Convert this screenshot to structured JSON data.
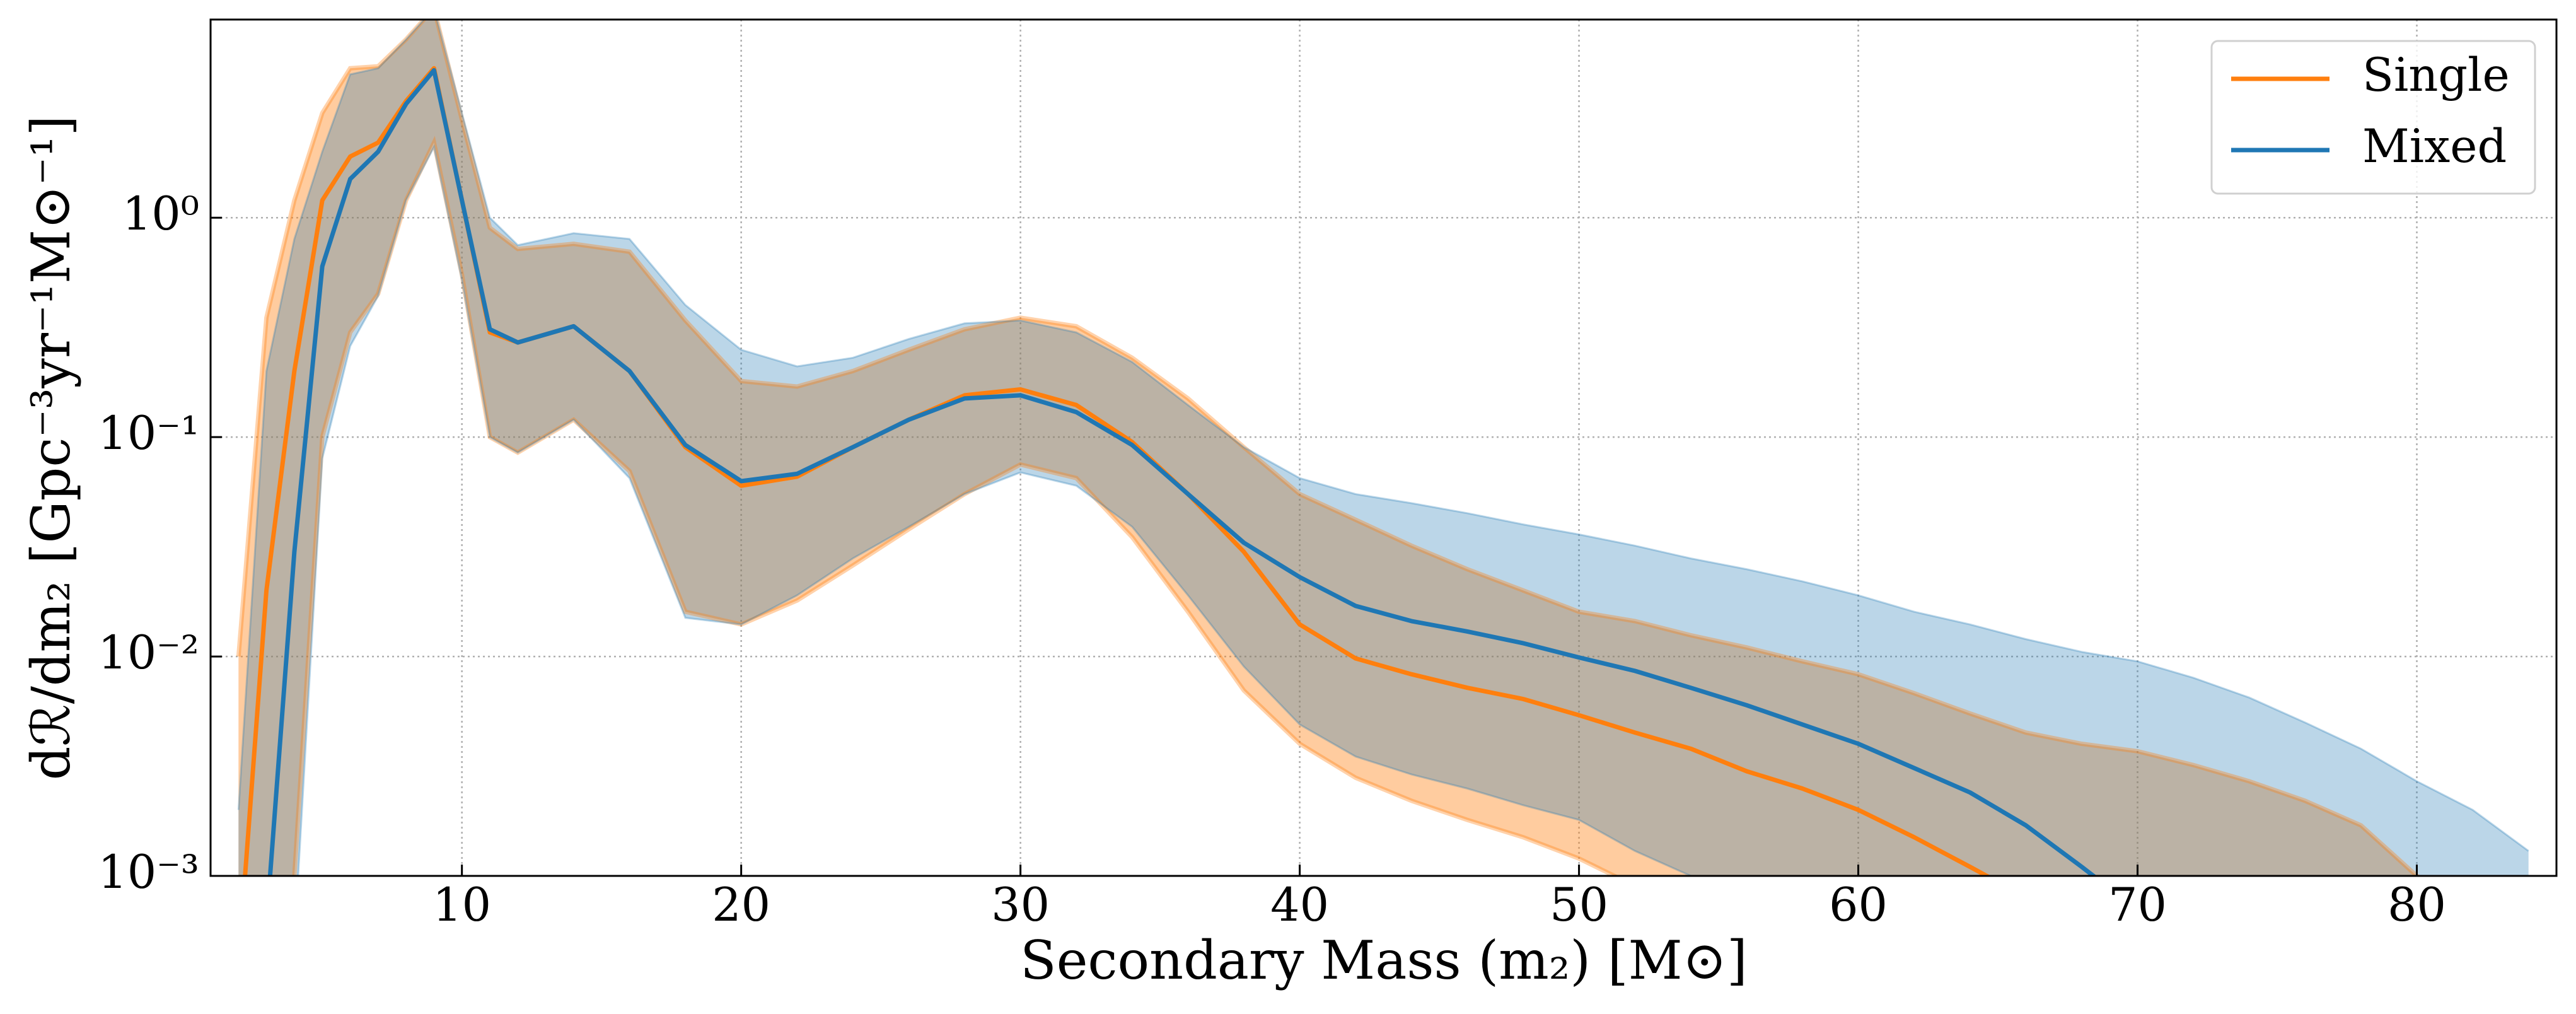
{
  "chart_data": {
    "type": "line",
    "xlabel": "Secondary Mass (m₂) [M⊙]",
    "ylabel": "dℛ/dm₂ [Gpc⁻³yr⁻¹M⊙⁻¹]",
    "x": [
      2,
      3,
      4,
      5,
      6,
      7,
      8,
      9,
      10,
      11,
      12,
      14,
      16,
      18,
      20,
      22,
      24,
      26,
      28,
      30,
      32,
      34,
      36,
      38,
      40,
      42,
      44,
      46,
      48,
      50,
      52,
      54,
      56,
      58,
      60,
      62,
      64,
      66,
      68,
      70,
      72,
      74,
      76,
      78,
      80,
      82,
      84
    ],
    "series": [
      {
        "name": "Single",
        "color": "#ff7f0e",
        "values": [
          0.0004,
          0.02,
          0.2,
          1.2,
          1.9,
          2.2,
          3.4,
          4.8,
          1.2,
          0.3,
          0.27,
          0.32,
          0.2,
          0.09,
          0.06,
          0.066,
          0.09,
          0.12,
          0.155,
          0.165,
          0.14,
          0.095,
          0.055,
          0.03,
          0.014,
          0.0098,
          0.0083,
          0.0072,
          0.0064,
          0.0054,
          0.0045,
          0.0038,
          0.003,
          0.0025,
          0.002,
          0.0015,
          0.0011,
          0.0008,
          null,
          null,
          null,
          null,
          null,
          null,
          null,
          null,
          null
        ],
        "lower": [
          0.0003,
          0.0004,
          0.001,
          0.1,
          0.3,
          0.45,
          1.2,
          2.2,
          0.55,
          0.1,
          0.085,
          0.12,
          0.07,
          0.016,
          0.014,
          0.018,
          0.026,
          0.038,
          0.055,
          0.075,
          0.065,
          0.035,
          0.016,
          0.007,
          0.004,
          0.0028,
          0.0022,
          0.0018,
          0.0015,
          0.0012,
          0.0009,
          0.0007,
          0.0005,
          0.0005,
          0.0005,
          0.0005,
          0.0005,
          0.0005,
          0.0005,
          0.0005,
          0.0005,
          0.0005,
          0.0005,
          0.0005,
          0.0005,
          0.0005,
          0.0005
        ],
        "upper": [
          0.01,
          0.35,
          1.2,
          3.0,
          4.8,
          4.9,
          6.5,
          9,
          2.8,
          0.9,
          0.72,
          0.76,
          0.7,
          0.34,
          0.18,
          0.17,
          0.2,
          0.25,
          0.31,
          0.35,
          0.32,
          0.23,
          0.15,
          0.09,
          0.055,
          0.042,
          0.032,
          0.025,
          0.02,
          0.016,
          0.0145,
          0.0125,
          0.011,
          0.0095,
          0.0083,
          0.0068,
          0.0055,
          0.0045,
          0.004,
          0.0037,
          0.0032,
          0.0027,
          0.0022,
          0.0017,
          0.001,
          0.0007,
          0.0005
        ]
      },
      {
        "name": "Mixed",
        "color": "#1f77b4",
        "values": [
          null,
          0.0006,
          0.03,
          0.6,
          1.5,
          2.0,
          3.3,
          4.7,
          1.2,
          0.31,
          0.27,
          0.32,
          0.2,
          0.092,
          0.063,
          0.068,
          0.09,
          0.12,
          0.15,
          0.155,
          0.13,
          0.092,
          0.055,
          0.033,
          0.023,
          0.017,
          0.0145,
          0.013,
          0.0115,
          0.0099,
          0.0086,
          0.0072,
          0.006,
          0.0049,
          0.004,
          0.0031,
          0.0024,
          0.0017,
          0.0011,
          0.0007,
          null,
          null,
          null,
          null,
          null,
          null,
          null
        ],
        "lower": [
          0.0003,
          0.0003,
          0.0005,
          0.08,
          0.26,
          0.44,
          1.2,
          2.1,
          0.52,
          0.1,
          0.085,
          0.12,
          0.065,
          0.015,
          0.014,
          0.019,
          0.028,
          0.039,
          0.055,
          0.069,
          0.06,
          0.039,
          0.019,
          0.009,
          0.0049,
          0.0035,
          0.0029,
          0.0025,
          0.0021,
          0.0018,
          0.0013,
          0.001,
          0.0007,
          0.0005,
          0.0005,
          0.0005,
          0.0005,
          0.0005,
          0.0005,
          0.0005,
          0.0005,
          0.0005,
          0.0005,
          0.0005,
          0.0005,
          0.0005,
          0.0005
        ],
        "upper": [
          0.002,
          0.2,
          0.8,
          2.0,
          4.5,
          4.8,
          6.5,
          9,
          3.0,
          1.0,
          0.75,
          0.85,
          0.8,
          0.4,
          0.25,
          0.21,
          0.23,
          0.28,
          0.33,
          0.34,
          0.3,
          0.22,
          0.14,
          0.09,
          0.065,
          0.055,
          0.05,
          0.045,
          0.04,
          0.036,
          0.032,
          0.028,
          0.025,
          0.022,
          0.019,
          0.016,
          0.014,
          0.012,
          0.0105,
          0.0095,
          0.008,
          0.0065,
          0.005,
          0.0038,
          0.0027,
          0.002,
          0.0013
        ]
      }
    ],
    "xlim": [
      1,
      85
    ],
    "xticks": [
      10,
      20,
      30,
      40,
      50,
      60,
      70,
      80
    ],
    "ylim": [
      0.001,
      8
    ],
    "yticks": [
      {
        "value": 0.001,
        "label": "10⁻³"
      },
      {
        "value": 0.01,
        "label": "10⁻²"
      },
      {
        "value": 0.1,
        "label": "10⁻¹"
      },
      {
        "value": 1,
        "label": "10⁰"
      }
    ],
    "log_y": true,
    "grid": true,
    "legend": "upper right"
  }
}
